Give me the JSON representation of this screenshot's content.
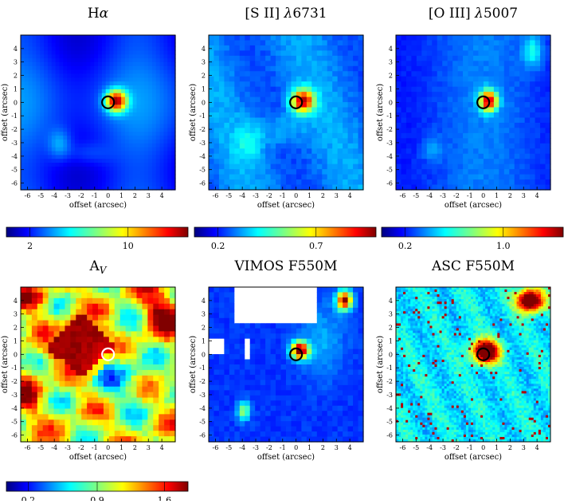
{
  "panels": [
    {
      "id": "halpha",
      "title_main": "H",
      "title_sub": "α",
      "title_suffix": "",
      "colorbar": {
        "ticks": [
          "2",
          "10"
        ]
      },
      "marker_color": "#000000",
      "kind": "ha"
    },
    {
      "id": "sii",
      "title_main": "[S II] ",
      "title_sub": "λ",
      "title_suffix": "6731",
      "colorbar": {
        "ticks": [
          "0.2",
          "0.7"
        ]
      },
      "marker_color": "#000000",
      "kind": "sii"
    },
    {
      "id": "oiii",
      "title_main": "[O III] ",
      "title_sub": "λ",
      "title_suffix": "5007",
      "colorbar": {
        "ticks": [
          "0.2",
          "1.0"
        ]
      },
      "marker_color": "#000000",
      "kind": "oiii"
    },
    {
      "id": "av",
      "title_main": "A",
      "title_sub": "V",
      "title_suffix": "",
      "colorbar": {
        "ticks": [
          "0.2",
          "0.9",
          "1.6"
        ]
      },
      "marker_color": "#ffffff",
      "kind": "av"
    },
    {
      "id": "vimos",
      "title_main": "VIMOS F550M",
      "title_sub": "",
      "title_suffix": "",
      "colorbar": null,
      "marker_color": "#000000",
      "kind": "vimos"
    },
    {
      "id": "asc",
      "title_main": "ASC F550M",
      "title_sub": "",
      "title_suffix": "",
      "colorbar": null,
      "marker_color": "#000000",
      "kind": "asc"
    }
  ],
  "axes": {
    "xlabel": "offset (arcsec)",
    "ylabel": "offset (arcsec)",
    "xticks": [
      "-6",
      "-5",
      "-4",
      "-3",
      "-2",
      "-1",
      "0",
      "1",
      "2",
      "3",
      "4"
    ],
    "yticks": [
      "4",
      "3",
      "2",
      "1",
      "0",
      "-1",
      "-2",
      "-3",
      "-4",
      "-5",
      "-6"
    ]
  },
  "colormap": "jet"
}
